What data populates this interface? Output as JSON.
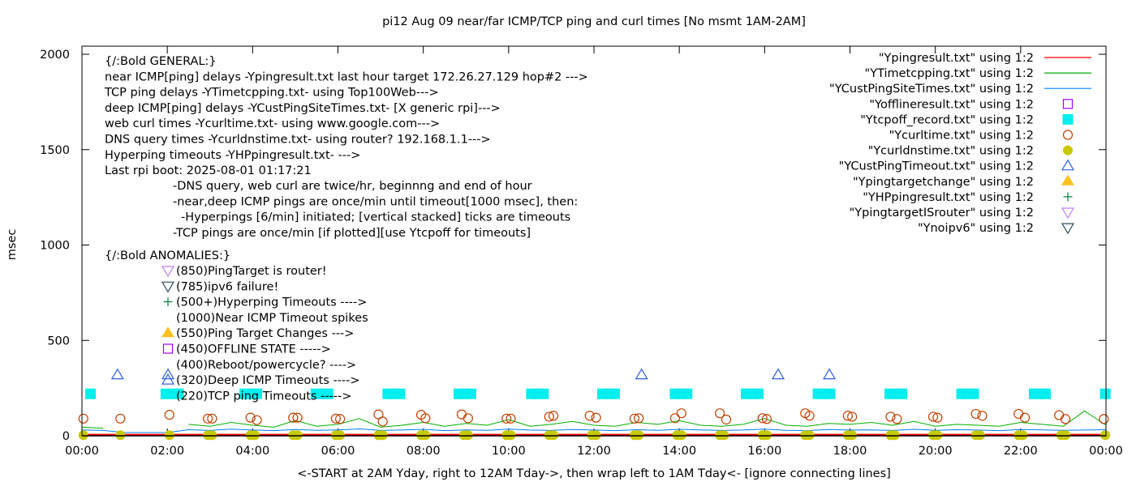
{
  "chart_data": {
    "type": "line",
    "title": "pi12 Aug 09  near/far ICMP/TCP ping and curl times [No msmt 1AM-2AM]",
    "xlabel": "<-START at 2AM Yday, right to 12AM Tday->, then wrap left to 1AM Tday<- [ignore connecting lines]",
    "ylabel": "msec",
    "ylim": [
      0,
      2000
    ],
    "yticks": [
      "0",
      "500",
      "1000",
      "1500",
      "2000"
    ],
    "xticks": [
      "00:00",
      "02:00",
      "04:00",
      "06:00",
      "08:00",
      "10:00",
      "12:00",
      "14:00",
      "16:00",
      "18:00",
      "20:00",
      "22:00",
      "00:00"
    ],
    "xlim": [
      "00:00",
      "24:00"
    ],
    "grid": false,
    "legend_position": "top-right",
    "annotations": {
      "general": [
        "{/:Bold GENERAL:}",
        "near ICMP[ping] delays -Ypingresult.txt last hour target 172.26.27.129 hop#2 --->",
        "TCP ping delays -YTimetcpping.txt- using Top100Web--->",
        "deep ICMP[ping] delays -YCustPingSiteTimes.txt- [X generic rpi]--->",
        "web curl times -Ycurltime.txt- using www.google.com--->",
        "DNS query times -Ycurldnstime.txt- using router? 192.168.1.1--->",
        "Hyperping timeouts -YHPpingresult.txt- --->",
        "Last rpi boot: 2025-08-01 01:17:21"
      ],
      "notes": [
        "-DNS query, web curl are twice/hr, beginnng and end of hour",
        "-near,deep ICMP pings are once/min until timeout[1000 msec], then:",
        "-Hyperpings [6/min] initiated; [vertical stacked] ticks are timeouts",
        "-TCP pings are once/min [if plotted][use Ytcpoff for timeouts]"
      ],
      "anomalies_header": "{/:Bold ANOMALIES:}",
      "anomalies": [
        {
          "text": "(850)PingTarget is router!",
          "marker": "triangle-down-open",
          "color": "#bf7fff"
        },
        {
          "text": "(785)ipv6 failure!",
          "marker": "triangle-down-open",
          "color": "#2f4f5f"
        },
        {
          "text": "(500+)Hyperping Timeouts ---->",
          "marker": "plus",
          "color": "#00803f"
        },
        {
          "text": "(1000)Near ICMP Timeout spikes",
          "marker": "none",
          "color": ""
        },
        {
          "text": "(550)Ping Target Changes --->",
          "marker": "triangle-up-filled",
          "color": "#ffc020"
        },
        {
          "text": "(450)OFFLINE STATE ----->",
          "marker": "square-open",
          "color": "#a000ff"
        },
        {
          "text": "(400)Reboot/powercycle? ---->",
          "marker": "none",
          "color": ""
        },
        {
          "text": "(320)Deep ICMP Timeouts ---->",
          "marker": "triangle-up-open",
          "color": "#3060e0"
        },
        {
          "text": "(220)TCP ping Timeouts ----->",
          "marker": "none",
          "color": ""
        }
      ]
    },
    "legend": [
      {
        "name": "\"Ypingresult.txt\" using 1:2",
        "style": "line",
        "color": "#ff0000"
      },
      {
        "name": "\"YTimetcpping.txt\" using 1:2",
        "style": "line",
        "color": "#00b000"
      },
      {
        "name": "\"YCustPingSiteTimes.txt\" using 1:2",
        "style": "line",
        "color": "#0080ff"
      },
      {
        "name": "\"Yofflineresult.txt\" using 1:2",
        "style": "square-open",
        "color": "#a000ff"
      },
      {
        "name": "\"Ytcpoff_record.txt\" using 1:2",
        "style": "square-filled",
        "color": "#00eeee"
      },
      {
        "name": "\"Ycurltime.txt\" using 1:2",
        "style": "circle-open",
        "color": "#c04000"
      },
      {
        "name": "\"Ycurldnstime.txt\" using 1:2",
        "style": "circle-filled",
        "color": "#c8c800"
      },
      {
        "name": "\"YCustPingTimeout.txt\" using 1:2",
        "style": "triangle-up-open",
        "color": "#3060e0"
      },
      {
        "name": "\"Ypingtargetchange\" using 1:2",
        "style": "triangle-up-filled",
        "color": "#ffc020"
      },
      {
        "name": "\"YHPpingresult.txt\" using 1:2",
        "style": "plus",
        "color": "#00803f"
      },
      {
        "name": "\"YpingtargetISrouter\" using 1:2",
        "style": "triangle-down-open",
        "color": "#bf7fff"
      },
      {
        "name": "\"Ynoipv6\" using 1:2",
        "style": "triangle-down-open",
        "color": "#2f4f5f"
      }
    ],
    "line_times": [
      "00:00",
      "00:30",
      "01:00",
      "01:30",
      "02:00",
      "02:30",
      "03:00",
      "03:30",
      "04:00",
      "04:30",
      "05:00",
      "05:30",
      "06:00",
      "06:30",
      "07:00",
      "07:30",
      "08:00",
      "08:30",
      "09:00",
      "09:30",
      "10:00",
      "10:30",
      "11:00",
      "11:30",
      "12:00",
      "12:30",
      "13:00",
      "13:30",
      "14:00",
      "14:30",
      "15:00",
      "15:30",
      "16:00",
      "16:30",
      "17:00",
      "17:30",
      "18:00",
      "18:30",
      "19:00",
      "19:30",
      "20:00",
      "20:30",
      "21:00",
      "21:30",
      "22:00",
      "22:30",
      "23:00",
      "23:30",
      "24:00"
    ],
    "series": [
      {
        "name": "\"Ypingresult.txt\" using 1:2",
        "values": [
          6,
          6,
          6,
          6,
          6,
          6,
          6,
          6,
          6,
          6,
          6,
          6,
          6,
          6,
          6,
          6,
          6,
          6,
          6,
          6,
          6,
          6,
          6,
          6,
          6,
          6,
          6,
          6,
          6,
          6,
          6,
          6,
          6,
          6,
          6,
          6,
          6,
          6,
          6,
          6,
          6,
          6,
          6,
          6,
          6,
          6,
          6,
          6,
          6
        ]
      },
      {
        "name": "\"YTimetcpping.txt\" using 1:2",
        "values": [
          45,
          40,
          null,
          null,
          null,
          60,
          50,
          70,
          55,
          45,
          80,
          50,
          60,
          90,
          45,
          55,
          70,
          50,
          65,
          55,
          85,
          50,
          60,
          75,
          55,
          50,
          70,
          60,
          80,
          55,
          50,
          60,
          90,
          55,
          50,
          65,
          60,
          70,
          55,
          75,
          50,
          60,
          55,
          50,
          70,
          60,
          50,
          130,
          55
        ]
      },
      {
        "name": "\"YCustPingSiteTimes.txt\" using 1:2",
        "values": [
          30,
          28,
          17,
          17,
          17,
          32,
          28,
          35,
          30,
          27,
          33,
          29,
          31,
          36,
          28,
          30,
          34,
          27,
          31,
          29,
          35,
          30,
          28,
          33,
          30,
          27,
          32,
          29,
          34,
          31,
          28,
          30,
          35,
          29,
          27,
          33,
          30,
          31,
          28,
          34,
          29,
          32,
          30,
          27,
          33,
          31,
          29,
          30,
          32
        ]
      }
    ],
    "points": {
      "Ytcpoff_record": {
        "value": 220,
        "times": [
          "00:12",
          "01:58",
          "02:07",
          "02:16",
          "03:49",
          "03:58",
          "04:06",
          "05:29",
          "05:37",
          "05:46",
          "07:10",
          "07:19",
          "07:27",
          "08:50",
          "08:59",
          "09:07",
          "10:32",
          "10:40",
          "10:49",
          "12:12",
          "12:20",
          "12:29",
          "13:54",
          "14:02",
          "14:11",
          "15:34",
          "15:43",
          "15:51",
          "17:15",
          "17:23",
          "17:32",
          "18:56",
          "19:05",
          "19:13",
          "20:37",
          "20:46",
          "20:54",
          "22:19",
          "22:27",
          "22:35",
          "23:59"
        ]
      },
      "YCustPingTimeout": {
        "value": 320,
        "times": [
          "00:50",
          "02:01",
          "13:07",
          "16:19",
          "17:31"
        ]
      },
      "Ycurltime": [
        [
          "00:02",
          90
        ],
        [
          "00:54",
          90
        ],
        [
          "02:03",
          110
        ],
        [
          "02:57",
          90
        ],
        [
          "03:03",
          90
        ],
        [
          "03:57",
          95
        ],
        [
          "04:06",
          82
        ],
        [
          "04:57",
          95
        ],
        [
          "05:03",
          95
        ],
        [
          "05:57",
          90
        ],
        [
          "06:03",
          88
        ],
        [
          "06:57",
          112
        ],
        [
          "07:03",
          75
        ],
        [
          "07:57",
          110
        ],
        [
          "08:03",
          92
        ],
        [
          "08:54",
          112
        ],
        [
          "09:03",
          92
        ],
        [
          "09:57",
          90
        ],
        [
          "10:03",
          90
        ],
        [
          "10:57",
          100
        ],
        [
          "11:03",
          105
        ],
        [
          "11:54",
          105
        ],
        [
          "12:03",
          95
        ],
        [
          "12:57",
          90
        ],
        [
          "13:03",
          92
        ],
        [
          "13:54",
          92
        ],
        [
          "14:03",
          118
        ],
        [
          "14:57",
          118
        ],
        [
          "15:06",
          85
        ],
        [
          "15:57",
          92
        ],
        [
          "16:03",
          88
        ],
        [
          "16:57",
          118
        ],
        [
          "17:03",
          105
        ],
        [
          "17:57",
          105
        ],
        [
          "18:03",
          100
        ],
        [
          "18:57",
          100
        ],
        [
          "19:06",
          88
        ],
        [
          "19:57",
          100
        ],
        [
          "20:03",
          95
        ],
        [
          "20:57",
          115
        ],
        [
          "21:06",
          105
        ],
        [
          "21:57",
          115
        ],
        [
          "22:06",
          95
        ],
        [
          "22:54",
          108
        ],
        [
          "23:03",
          88
        ],
        [
          "23:57",
          88
        ]
      ],
      "Ycurldnstime": {
        "value": 3,
        "times": [
          "00:02",
          "00:54",
          "02:03",
          "02:57",
          "03:03",
          "03:57",
          "04:03",
          "04:57",
          "05:03",
          "05:57",
          "06:03",
          "06:57",
          "07:03",
          "07:57",
          "08:03",
          "08:57",
          "09:03",
          "09:57",
          "10:03",
          "10:57",
          "11:03",
          "11:57",
          "12:03",
          "12:57",
          "13:03",
          "13:57",
          "14:03",
          "14:57",
          "15:03",
          "15:57",
          "16:03",
          "16:57",
          "17:03",
          "17:57",
          "18:03",
          "18:57",
          "19:03",
          "19:57",
          "20:03",
          "20:57",
          "21:03",
          "21:57",
          "22:03",
          "22:57",
          "23:03",
          "23:59"
        ]
      }
    }
  }
}
